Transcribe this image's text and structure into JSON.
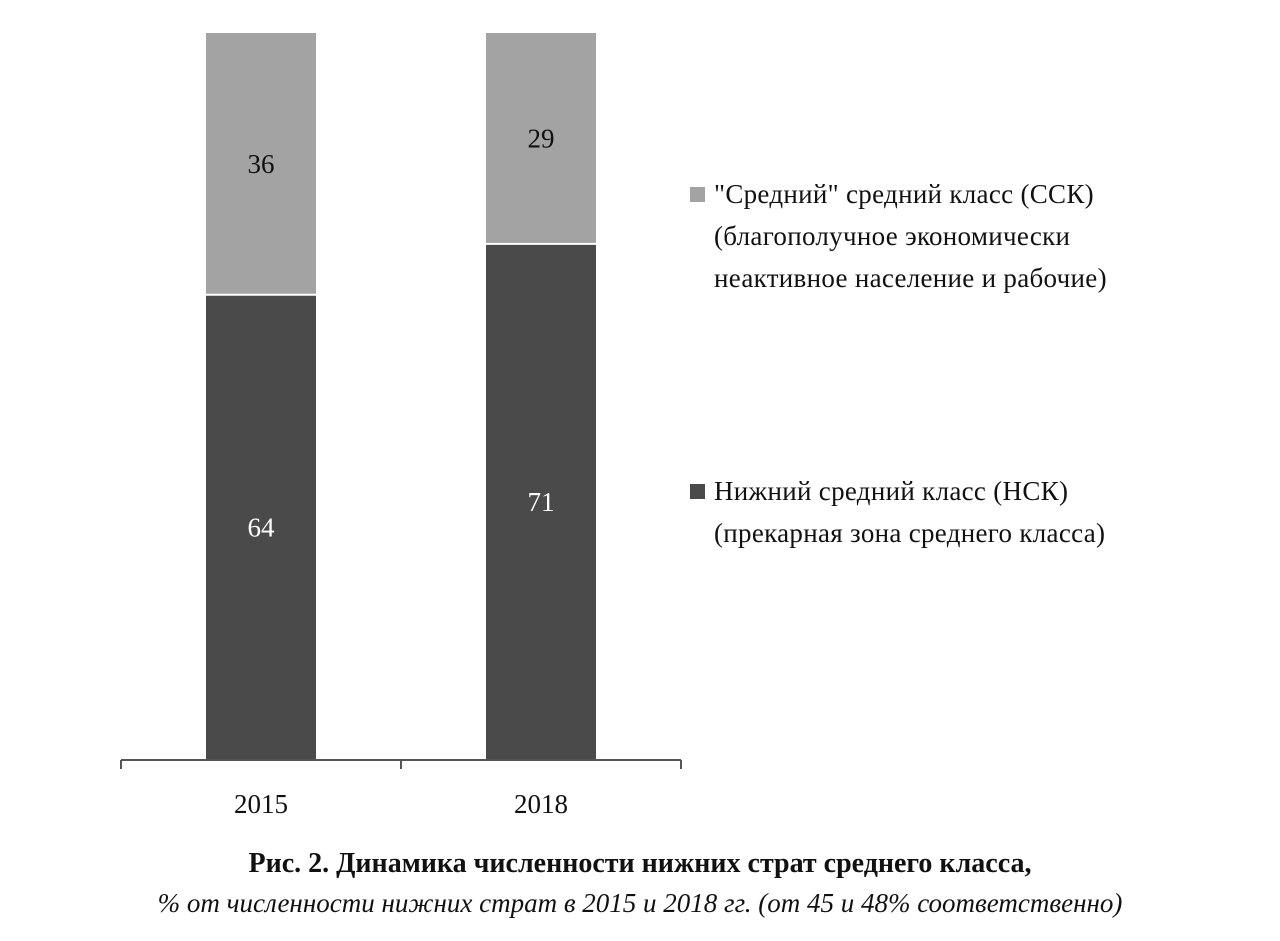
{
  "chart_data": {
    "type": "bar",
    "stacked": true,
    "categories": [
      "2015",
      "2018"
    ],
    "series": [
      {
        "name": "Нижний средний класс (НСК)\n(прекарная зона среднего класса)",
        "values": [
          64,
          71
        ],
        "color": "#4a4a4a",
        "label_color": "#ffffff"
      },
      {
        "name": "\"Средний\" средний класс (ССК)\n(благополучное экономически\nнеактивное население и рабочие)",
        "values": [
          36,
          29
        ],
        "color": "#a3a3a3",
        "label_color": "#111111"
      }
    ],
    "ylim": [
      0,
      100
    ],
    "grid": false,
    "legend_position": "right"
  },
  "caption": {
    "title": "Рис.  2. Динамика численности нижних страт среднего класса,",
    "subtitle": "% от численности нижних страт в 2015 и 2018 гг. (от 45 и 48% соответственно)"
  }
}
